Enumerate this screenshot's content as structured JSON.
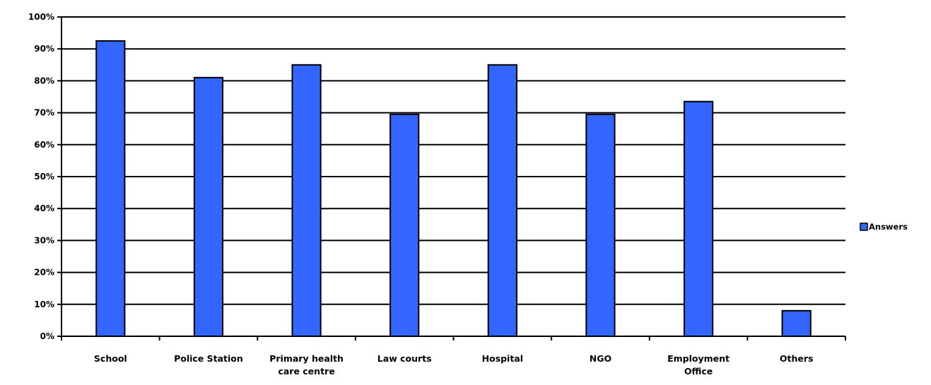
{
  "chart_data": {
    "type": "bar",
    "categories": [
      "School",
      "Police Station",
      "Primary health care centre",
      "Law courts",
      "Hospital",
      "NGO",
      "Employment Office",
      "Others"
    ],
    "category_lines": [
      [
        "School"
      ],
      [
        "Police Station"
      ],
      [
        "Primary health",
        "care centre"
      ],
      [
        "Law courts"
      ],
      [
        "Hospital"
      ],
      [
        "NGO"
      ],
      [
        "Employment",
        "Office"
      ],
      [
        "Others"
      ]
    ],
    "series": [
      {
        "name": "Answers",
        "values": [
          92.5,
          81,
          85,
          69.5,
          85,
          69.5,
          73.5,
          8
        ]
      }
    ],
    "ylim": [
      0,
      100
    ],
    "yticks": [
      "0%",
      "10%",
      "20%",
      "30%",
      "40%",
      "50%",
      "60%",
      "70%",
      "80%",
      "90%",
      "100%"
    ],
    "grid": true,
    "legend_position": "right",
    "colors": {
      "bar": "#3366ff",
      "bar_stroke": "#000000",
      "grid": "#000000"
    }
  }
}
